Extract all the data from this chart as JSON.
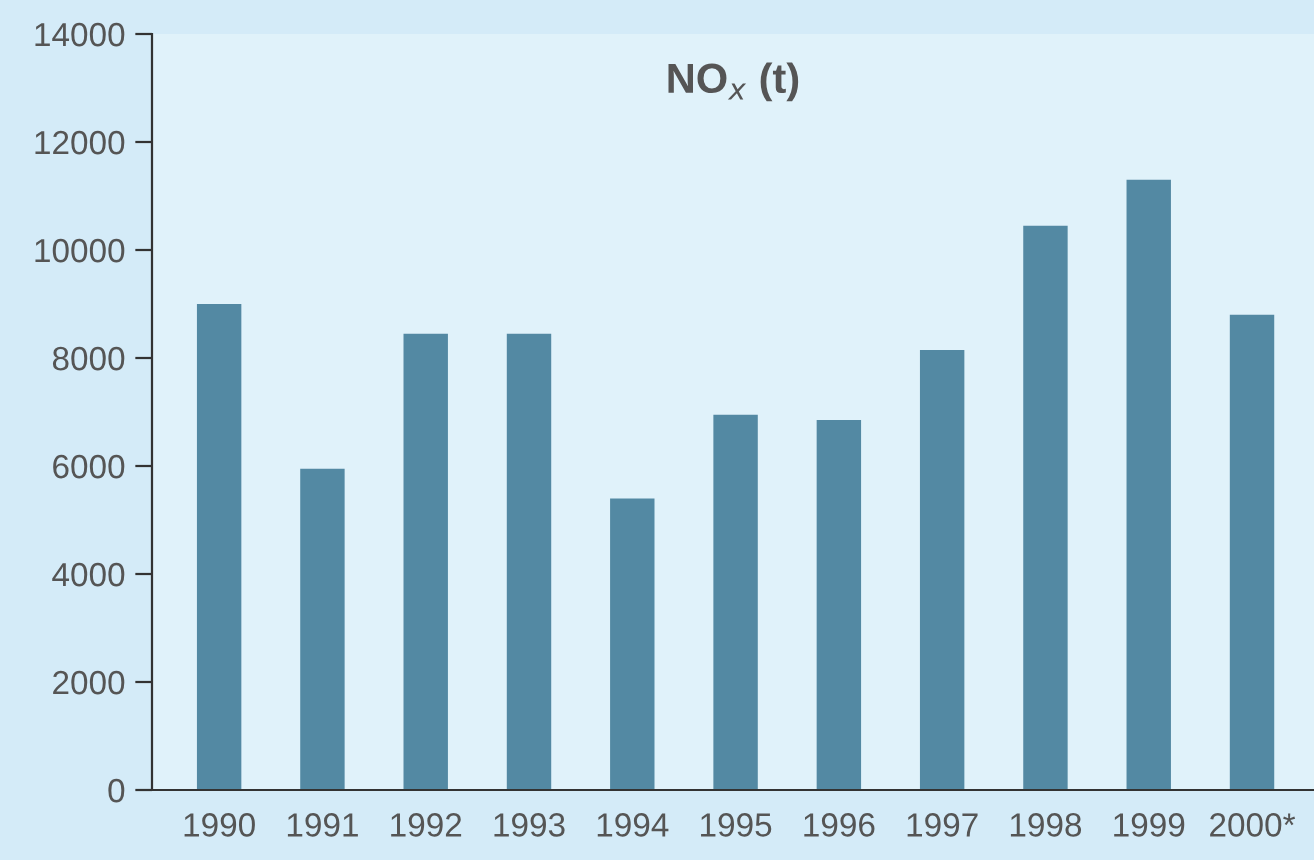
{
  "chart_data": {
    "type": "bar",
    "title": "NO$_{x}$ (t)",
    "categories": [
      "1990",
      "1991",
      "1992",
      "1993",
      "1994",
      "1995",
      "1996",
      "1997",
      "1998",
      "1999",
      "2000*"
    ],
    "values": [
      9000,
      5950,
      8450,
      8450,
      5400,
      6950,
      6850,
      8150,
      10450,
      11300,
      8800
    ],
    "color": "#5389a3",
    "ylim": [
      0,
      14000
    ],
    "yticks": [
      0,
      2000,
      4000,
      6000,
      8000,
      10000,
      12000,
      14000
    ],
    "grid": false
  }
}
